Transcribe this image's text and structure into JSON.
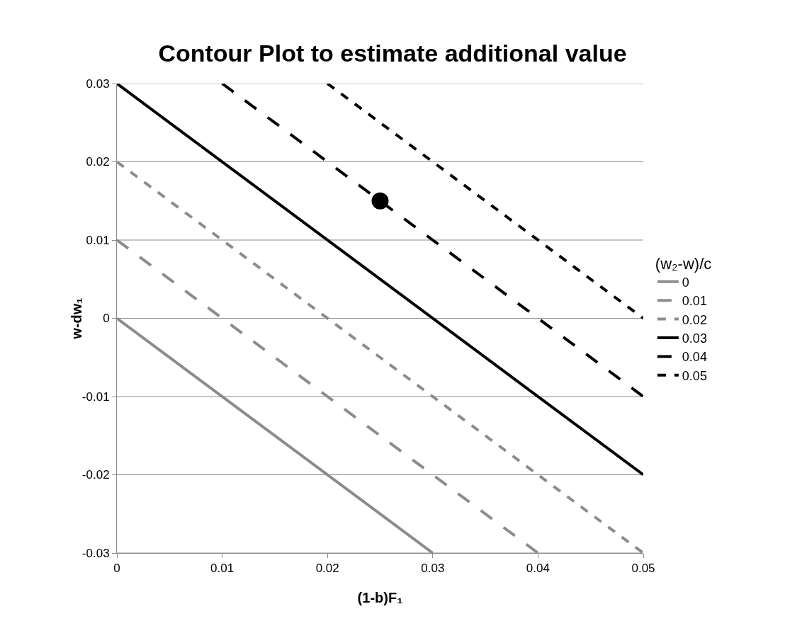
{
  "chart_data": {
    "type": "line",
    "title": "Contour Plot to estimate additional value",
    "xlabel": "(1-b)F₁",
    "ylabel": "w-dw₁",
    "legend_title": "(w₂-w)/c",
    "xlim": [
      0,
      0.05
    ],
    "xticks": [
      0,
      0.01,
      0.02,
      0.03,
      0.04,
      0.05
    ],
    "ylim": [
      -0.03,
      0.03
    ],
    "yticks": [
      -0.03,
      -0.02,
      -0.01,
      0,
      0.01,
      0.02,
      0.03
    ],
    "grid": "y",
    "legend": "right",
    "marker": "none",
    "series": [
      {
        "name": "0",
        "color": "#8c8c8c",
        "line_style": "solid",
        "x": [
          0,
          0.03
        ],
        "values": [
          0,
          -0.03
        ]
      },
      {
        "name": "0.01",
        "color": "#8c8c8c",
        "line_style": "dashed",
        "x": [
          0,
          0.04
        ],
        "values": [
          0.01,
          -0.03
        ]
      },
      {
        "name": "0.02",
        "color": "#8c8c8c",
        "line_style": "dotted",
        "x": [
          0,
          0.05
        ],
        "values": [
          0.02,
          -0.03
        ]
      },
      {
        "name": "0.03",
        "color": "#000000",
        "line_style": "solid",
        "x": [
          0,
          0.05
        ],
        "values": [
          0.03,
          -0.02
        ]
      },
      {
        "name": "0.04",
        "color": "#000000",
        "line_style": "dashed",
        "x": [
          0.01,
          0.05
        ],
        "values": [
          0.03,
          -0.01
        ]
      },
      {
        "name": "0.05",
        "color": "#000000",
        "line_style": "dotted",
        "x": [
          0.02,
          0.05
        ],
        "values": [
          0.03,
          0
        ]
      },
      {
        "type": "scatter",
        "marker": "circle",
        "color": "#000000",
        "x": [
          0.025
        ],
        "values": [
          0.015
        ]
      }
    ]
  }
}
